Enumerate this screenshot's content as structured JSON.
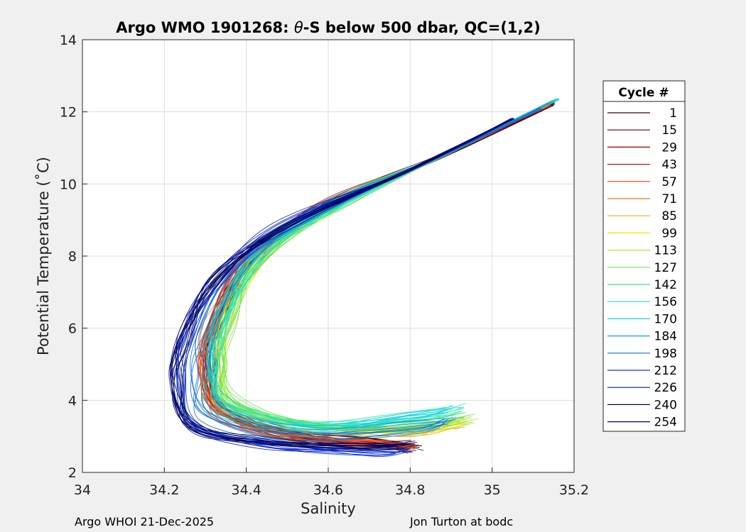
{
  "chart_data": {
    "type": "line",
    "title": "Argo WMO 1901268: θ-S below 500 dbar,  QC=(1,2)",
    "title_prefix": "Argo WMO 1901268: ",
    "title_theta": "θ",
    "title_suffix": "-S below 500 dbar,  QC=(1,2)",
    "xlabel": "Salinity",
    "ylabel": "Potential Temperature (˚C)",
    "xlim": [
      34,
      35.2
    ],
    "ylim": [
      2,
      14
    ],
    "x_ticks": [
      34,
      34.2,
      34.4,
      34.6,
      34.8,
      35,
      35.2
    ],
    "y_ticks": [
      2,
      4,
      6,
      8,
      10,
      12,
      14
    ],
    "x_tick_labels": [
      "34",
      "34.2",
      "34.4",
      "34.6",
      "34.8",
      "35",
      "35.2"
    ],
    "y_tick_labels": [
      "2",
      "4",
      "6",
      "8",
      "10",
      "12",
      "14"
    ],
    "grid": true,
    "legend_title": "Cycle #",
    "legend_position": "outside-right",
    "series": [
      {
        "name": "1",
        "color": "#3a0000",
        "points": [
          [
            35.15,
            12.25
          ],
          [
            34.9,
            10.9
          ],
          [
            34.62,
            9.5
          ],
          [
            34.42,
            8.0
          ],
          [
            34.34,
            6.2
          ],
          [
            34.32,
            5.0
          ],
          [
            34.35,
            3.8
          ],
          [
            34.5,
            3.1
          ],
          [
            34.7,
            2.85
          ],
          [
            34.82,
            2.7
          ]
        ]
      },
      {
        "name": "15",
        "color": "#5c0000",
        "points": [
          [
            35.15,
            12.2
          ],
          [
            34.9,
            10.85
          ],
          [
            34.6,
            9.4
          ],
          [
            34.42,
            8.0
          ],
          [
            34.33,
            6.2
          ],
          [
            34.31,
            5.0
          ],
          [
            34.34,
            3.8
          ],
          [
            34.5,
            3.05
          ],
          [
            34.72,
            2.8
          ],
          [
            34.8,
            2.65
          ]
        ]
      },
      {
        "name": "29",
        "color": "#8a0000",
        "points": [
          [
            35.15,
            12.25
          ],
          [
            34.9,
            10.9
          ],
          [
            34.62,
            9.45
          ],
          [
            34.41,
            7.9
          ],
          [
            34.32,
            6.1
          ],
          [
            34.31,
            5.0
          ],
          [
            34.34,
            3.75
          ],
          [
            34.5,
            3.05
          ],
          [
            34.7,
            2.85
          ],
          [
            34.8,
            2.75
          ]
        ]
      },
      {
        "name": "43",
        "color": "#c01010",
        "points": [
          [
            35.14,
            12.2
          ],
          [
            34.88,
            10.8
          ],
          [
            34.6,
            9.4
          ],
          [
            34.4,
            7.9
          ],
          [
            34.32,
            6.1
          ],
          [
            34.3,
            5.0
          ],
          [
            34.33,
            3.8
          ],
          [
            34.5,
            3.1
          ],
          [
            34.7,
            2.8
          ],
          [
            34.79,
            2.7
          ]
        ]
      },
      {
        "name": "57",
        "color": "#ea3d1a",
        "points": [
          [
            35.14,
            12.2
          ],
          [
            34.88,
            10.8
          ],
          [
            34.58,
            9.3
          ],
          [
            34.4,
            7.8
          ],
          [
            34.31,
            6.0
          ],
          [
            34.3,
            4.9
          ],
          [
            34.34,
            3.6
          ],
          [
            34.5,
            3.0
          ],
          [
            34.72,
            2.8
          ],
          [
            34.8,
            2.7
          ]
        ]
      },
      {
        "name": "71",
        "color": "#f07020",
        "points": [
          [
            35.13,
            12.15
          ],
          [
            34.86,
            10.7
          ],
          [
            34.57,
            9.2
          ],
          [
            34.39,
            7.7
          ],
          [
            34.3,
            5.9
          ],
          [
            34.3,
            4.8
          ],
          [
            34.33,
            3.6
          ],
          [
            34.5,
            3.0
          ],
          [
            34.7,
            2.8
          ],
          [
            34.8,
            2.75
          ]
        ]
      },
      {
        "name": "85",
        "color": "#f5a623",
        "points": [
          [
            35.14,
            12.25
          ],
          [
            34.9,
            10.9
          ],
          [
            34.62,
            9.5
          ],
          [
            34.43,
            8.0
          ],
          [
            34.34,
            6.2
          ],
          [
            34.32,
            5.0
          ],
          [
            34.35,
            3.8
          ],
          [
            34.55,
            3.2
          ],
          [
            34.8,
            3.1
          ],
          [
            34.92,
            3.3
          ]
        ]
      },
      {
        "name": "99",
        "color": "#f2e200",
        "points": [
          [
            35.15,
            12.3
          ],
          [
            34.9,
            10.9
          ],
          [
            34.63,
            9.5
          ],
          [
            34.44,
            8.0
          ],
          [
            34.35,
            6.2
          ],
          [
            34.33,
            5.0
          ],
          [
            34.36,
            3.9
          ],
          [
            34.55,
            3.25
          ],
          [
            34.8,
            3.15
          ],
          [
            34.93,
            3.4
          ]
        ]
      },
      {
        "name": "113",
        "color": "#a8e63a",
        "points": [
          [
            35.15,
            12.3
          ],
          [
            34.9,
            10.9
          ],
          [
            34.64,
            9.5
          ],
          [
            34.44,
            8.0
          ],
          [
            34.36,
            6.2
          ],
          [
            34.34,
            5.0
          ],
          [
            34.37,
            3.9
          ],
          [
            34.55,
            3.3
          ],
          [
            34.8,
            3.2
          ],
          [
            34.95,
            3.5
          ]
        ]
      },
      {
        "name": "127",
        "color": "#6ee65a",
        "points": [
          [
            35.15,
            12.3
          ],
          [
            34.9,
            10.9
          ],
          [
            34.63,
            9.5
          ],
          [
            34.44,
            8.0
          ],
          [
            34.36,
            6.2
          ],
          [
            34.34,
            5.0
          ],
          [
            34.37,
            4.0
          ],
          [
            34.55,
            3.35
          ],
          [
            34.8,
            3.3
          ],
          [
            34.94,
            3.5
          ]
        ]
      },
      {
        "name": "142",
        "color": "#3be48c",
        "points": [
          [
            35.16,
            12.35
          ],
          [
            34.9,
            10.9
          ],
          [
            34.63,
            9.5
          ],
          [
            34.43,
            8.0
          ],
          [
            34.35,
            6.2
          ],
          [
            34.33,
            5.0
          ],
          [
            34.36,
            4.0
          ],
          [
            34.55,
            3.4
          ],
          [
            34.8,
            3.5
          ],
          [
            34.93,
            3.7
          ]
        ]
      },
      {
        "name": "156",
        "color": "#1fe0c0",
        "points": [
          [
            35.16,
            12.35
          ],
          [
            34.9,
            10.9
          ],
          [
            34.62,
            9.5
          ],
          [
            34.43,
            8.0
          ],
          [
            34.34,
            6.2
          ],
          [
            34.32,
            5.0
          ],
          [
            34.35,
            3.9
          ],
          [
            34.55,
            3.3
          ],
          [
            34.8,
            3.6
          ],
          [
            34.92,
            3.8
          ]
        ]
      },
      {
        "name": "170",
        "color": "#17d1e6",
        "points": [
          [
            35.16,
            12.35
          ],
          [
            34.9,
            10.9
          ],
          [
            34.62,
            9.45
          ],
          [
            34.42,
            7.95
          ],
          [
            34.33,
            6.1
          ],
          [
            34.31,
            5.0
          ],
          [
            34.34,
            3.8
          ],
          [
            34.55,
            3.2
          ],
          [
            34.8,
            3.5
          ],
          [
            34.9,
            3.7
          ]
        ]
      },
      {
        "name": "184",
        "color": "#0fa8c8",
        "points": [
          [
            35.15,
            12.3
          ],
          [
            34.88,
            10.8
          ],
          [
            34.6,
            9.4
          ],
          [
            34.41,
            7.9
          ],
          [
            34.32,
            6.0
          ],
          [
            34.3,
            4.9
          ],
          [
            34.33,
            3.7
          ],
          [
            34.55,
            3.15
          ],
          [
            34.8,
            3.3
          ],
          [
            34.9,
            3.5
          ]
        ]
      },
      {
        "name": "198",
        "color": "#0f6fd6",
        "points": [
          [
            35.12,
            12.1
          ],
          [
            34.86,
            10.7
          ],
          [
            34.56,
            9.2
          ],
          [
            34.38,
            7.7
          ],
          [
            34.3,
            5.9
          ],
          [
            34.28,
            4.8
          ],
          [
            34.3,
            3.6
          ],
          [
            34.5,
            3.0
          ],
          [
            34.8,
            3.2
          ],
          [
            34.9,
            3.4
          ]
        ]
      },
      {
        "name": "212",
        "color": "#0a35ee",
        "points": [
          [
            35.05,
            11.8
          ],
          [
            34.8,
            10.4
          ],
          [
            34.5,
            8.9
          ],
          [
            34.34,
            7.4
          ],
          [
            34.26,
            5.8
          ],
          [
            34.24,
            4.6
          ],
          [
            34.28,
            3.3
          ],
          [
            34.45,
            2.8
          ],
          [
            34.7,
            2.55
          ],
          [
            34.78,
            2.6
          ]
        ]
      },
      {
        "name": "226",
        "color": "#0018a8",
        "points": [
          [
            35.05,
            11.8
          ],
          [
            34.8,
            10.4
          ],
          [
            34.48,
            8.8
          ],
          [
            34.32,
            7.3
          ],
          [
            34.25,
            5.7
          ],
          [
            34.23,
            4.5
          ],
          [
            34.27,
            3.2
          ],
          [
            34.45,
            2.75
          ],
          [
            34.7,
            2.6
          ],
          [
            34.8,
            2.6
          ]
        ]
      },
      {
        "name": "240",
        "color": "#000840",
        "points": [
          [
            35.05,
            11.8
          ],
          [
            34.8,
            10.4
          ],
          [
            34.48,
            8.7
          ],
          [
            34.32,
            7.2
          ],
          [
            34.25,
            5.6
          ],
          [
            34.23,
            4.5
          ],
          [
            34.27,
            3.3
          ],
          [
            34.45,
            2.85
          ],
          [
            34.7,
            2.7
          ],
          [
            34.8,
            2.75
          ]
        ]
      },
      {
        "name": "254",
        "color": "#00007a",
        "points": [
          [
            35.05,
            11.8
          ],
          [
            34.8,
            10.4
          ],
          [
            34.5,
            8.9
          ],
          [
            34.33,
            7.4
          ],
          [
            34.25,
            5.8
          ],
          [
            34.22,
            4.5
          ],
          [
            34.26,
            3.3
          ],
          [
            34.45,
            2.85
          ],
          [
            34.68,
            2.75
          ],
          [
            34.8,
            2.8
          ]
        ]
      }
    ]
  },
  "footer": {
    "left": "Argo WHOI 21-Dec-2025",
    "right": "Jon Turton at bodc"
  }
}
